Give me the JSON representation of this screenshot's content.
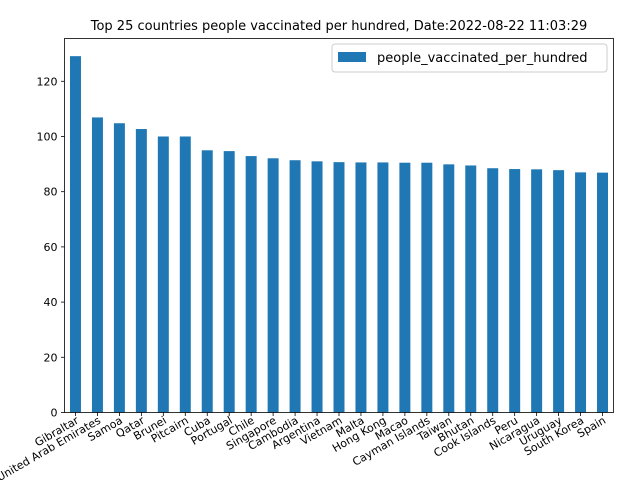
{
  "chart_data": {
    "type": "bar",
    "title": "Top 25 countries people vaccinated per hundred, Date:2022-08-22 11:03:29",
    "xlabel": "",
    "ylabel": "",
    "categories": [
      "Gibraltar",
      "United Arab Emirates",
      "Samoa",
      "Qatar",
      "Brunei",
      "Pitcairn",
      "Cuba",
      "Portugal",
      "Chile",
      "Singapore",
      "Cambodia",
      "Argentina",
      "Vietnam",
      "Malta",
      "Hong Kong",
      "Macao",
      "Cayman Islands",
      "Taiwan",
      "Bhutan",
      "Cook Islands",
      "Peru",
      "Nicaragua",
      "Uruguay",
      "South Korea",
      "Spain"
    ],
    "series": [
      {
        "name": "people_vaccinated_per_hundred",
        "color": "#1f77b4",
        "values": [
          129.1,
          106.9,
          104.8,
          102.7,
          100.0,
          100.0,
          95.0,
          94.7,
          92.9,
          92.1,
          91.4,
          91.0,
          90.7,
          90.6,
          90.6,
          90.5,
          90.5,
          89.9,
          89.5,
          88.5,
          88.2,
          88.1,
          87.8,
          87.0,
          86.9
        ]
      }
    ],
    "ylim": [
      0,
      135.5
    ],
    "yticks": [
      0,
      20,
      40,
      60,
      80,
      100,
      120
    ],
    "grid": false,
    "legend_position": "top-right"
  }
}
